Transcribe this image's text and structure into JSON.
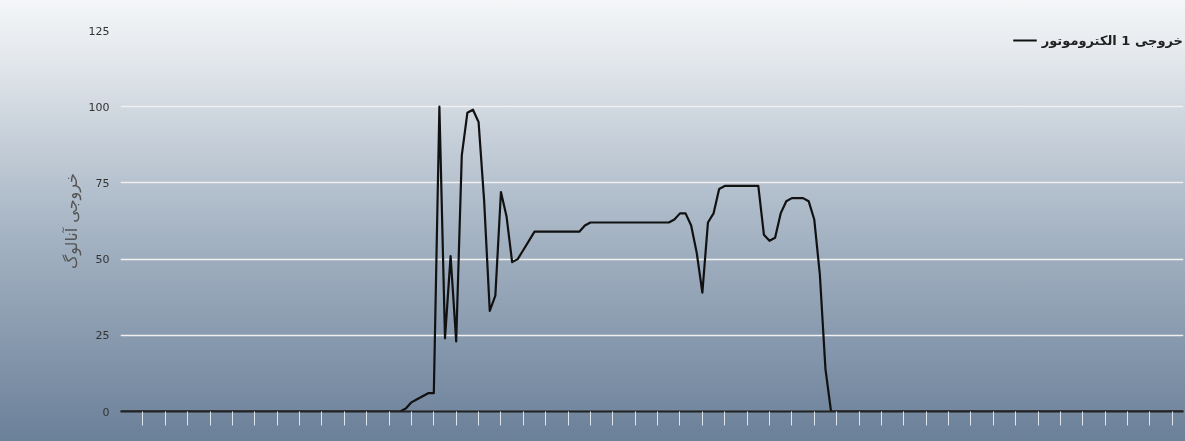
{
  "chart_data": {
    "type": "line",
    "ylabel": "خروجی آنالوگ",
    "legend": "top right",
    "grid": "y",
    "line_style": "solid",
    "categories": [
      null,
      null,
      null,
      null,
      null,
      null,
      null,
      null,
      null,
      null,
      null,
      null,
      null,
      null,
      null,
      null,
      null,
      null,
      null,
      null,
      null,
      null,
      null,
      null,
      null,
      null,
      null,
      null,
      null,
      null,
      null,
      null,
      null,
      null,
      null,
      null,
      null,
      null,
      null,
      null,
      null,
      null,
      null,
      null,
      null,
      null,
      null,
      null,
      null,
      null,
      null,
      null,
      null,
      null,
      null,
      null,
      null,
      null,
      null,
      null,
      null,
      null,
      null,
      null,
      null,
      null,
      null,
      null,
      null,
      null,
      null,
      null,
      null,
      null,
      null,
      null,
      null,
      null,
      null,
      null,
      null,
      null,
      null,
      null,
      null,
      null,
      null,
      null,
      null,
      null,
      null,
      null,
      null,
      null,
      null,
      null,
      null,
      null,
      null,
      null,
      null,
      null,
      null,
      null,
      null,
      null,
      null,
      null,
      null,
      null,
      null,
      null,
      null,
      null,
      null,
      null,
      null,
      null,
      null,
      null,
      null,
      null,
      null,
      null,
      null,
      null,
      null,
      null,
      null,
      null,
      null,
      null,
      null,
      null,
      null,
      null,
      null,
      null,
      null,
      null,
      null,
      null,
      null,
      null,
      null,
      null,
      null,
      null,
      null,
      null,
      null,
      null,
      null,
      null,
      null,
      null,
      null,
      null,
      null,
      null,
      null,
      null,
      null,
      null,
      null,
      null,
      null,
      null,
      null,
      null,
      null,
      null,
      null,
      null,
      null,
      null,
      null,
      null,
      null,
      null,
      null,
      null,
      null,
      null,
      null,
      null,
      null,
      null,
      null,
      null,
      null
    ],
    "series": [
      {
        "name": "خروجی 1 الکتروموتور",
        "color": "#111111",
        "values": [
          0,
          0,
          0,
          0,
          0,
          0,
          0,
          0,
          0,
          0,
          0,
          0,
          0,
          0,
          0,
          0,
          0,
          0,
          0,
          0,
          0,
          0,
          0,
          0,
          0,
          0,
          0,
          0,
          0,
          0,
          0,
          0,
          0,
          0,
          0,
          0,
          0,
          0,
          0,
          0,
          0,
          0,
          0,
          0,
          0,
          0,
          0,
          0,
          0,
          0,
          0,
          1,
          3,
          4,
          5,
          6,
          6,
          100,
          24,
          51,
          23,
          84,
          98,
          99,
          95,
          69,
          33,
          38,
          72,
          64,
          49,
          50,
          53,
          56,
          59,
          59,
          59,
          59,
          59,
          59,
          59,
          59,
          59,
          61,
          62,
          62,
          62,
          62,
          62,
          62,
          62,
          62,
          62,
          62,
          62,
          62,
          62,
          62,
          62,
          63,
          65,
          65,
          61,
          52,
          39,
          62,
          65,
          73,
          74,
          74,
          74,
          74,
          74,
          74,
          74,
          58,
          56,
          57,
          65,
          69,
          70,
          70,
          70,
          69,
          63,
          45,
          14,
          0,
          0,
          0,
          0,
          0,
          0,
          0,
          0,
          0,
          0,
          0,
          0,
          0,
          0,
          0,
          0,
          0,
          0,
          0,
          0,
          0,
          0,
          0,
          0,
          0,
          0,
          0,
          0,
          0,
          0,
          0,
          0,
          0,
          0,
          0,
          0,
          0,
          0,
          0,
          0,
          0,
          0,
          0,
          0,
          0,
          0,
          0,
          0,
          0,
          0,
          0,
          0,
          0,
          0,
          0,
          0,
          0,
          0,
          0,
          0,
          0,
          0,
          0,
          0
        ]
      }
    ],
    "ylim": [
      0,
      125
    ],
    "yticks": [
      0,
      25,
      50,
      75,
      100,
      125
    ],
    "tick_labels": "y"
  }
}
